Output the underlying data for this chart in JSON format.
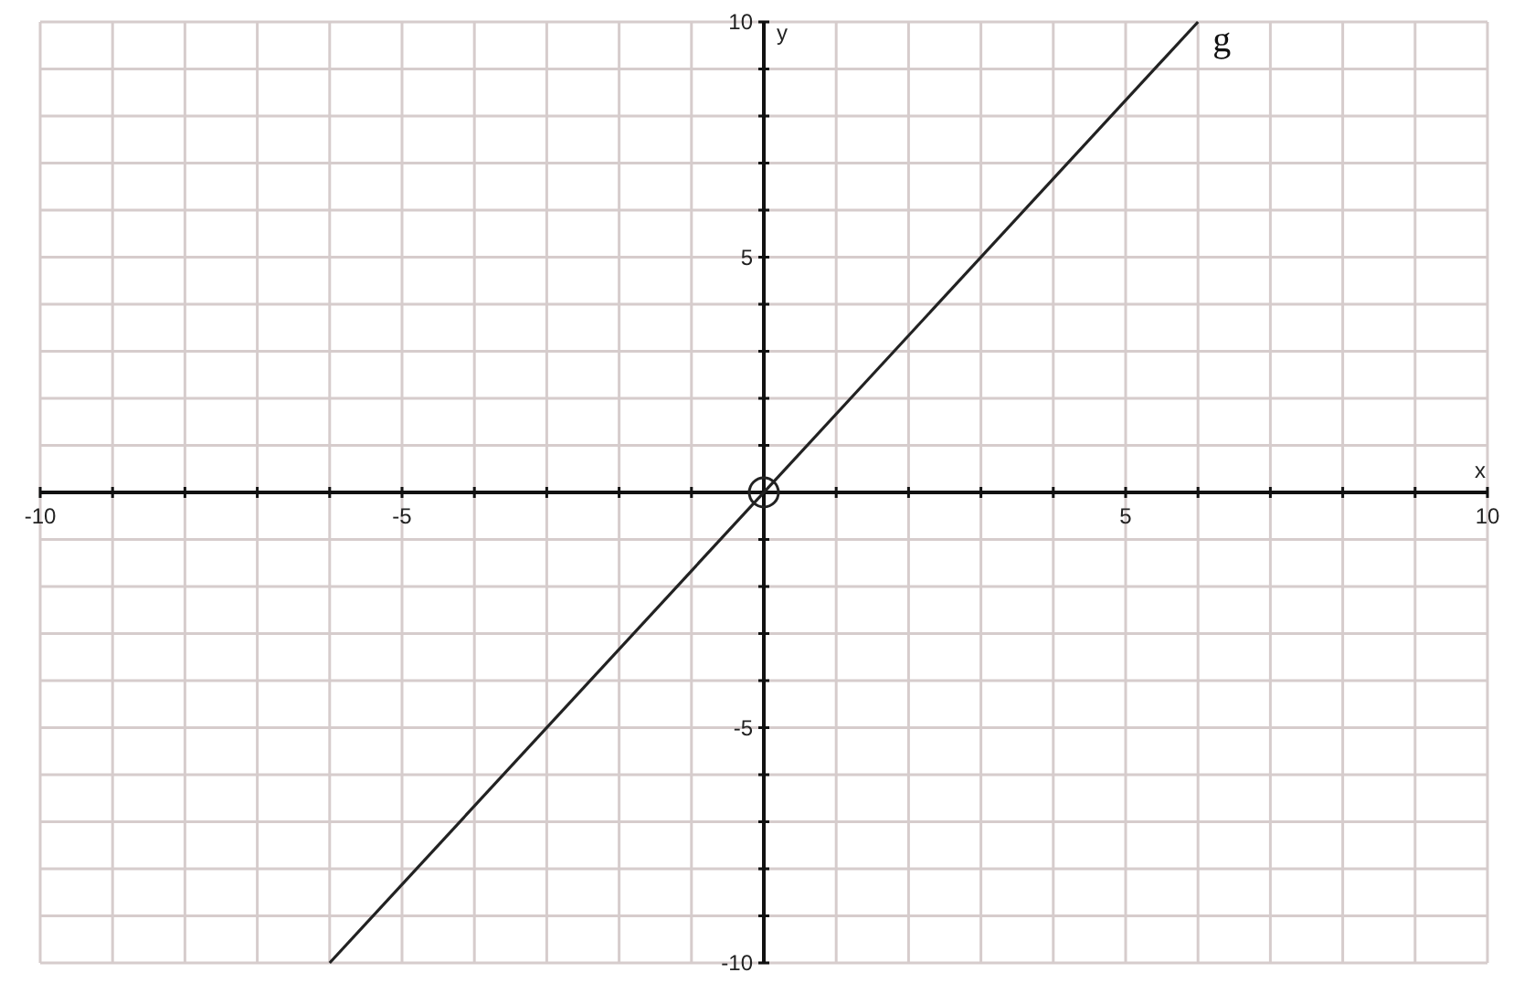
{
  "chart_data": {
    "type": "line",
    "xlabel": "x",
    "ylabel": "y",
    "xlim": [
      -10,
      10
    ],
    "ylim": [
      -10,
      10
    ],
    "xticks": [
      -10,
      {
        "value": -9,
        "label": null
      },
      {
        "value": -8,
        "label": null
      },
      {
        "value": -7,
        "label": null
      },
      {
        "value": -6,
        "label": null
      },
      -5,
      {
        "value": -4,
        "label": null
      },
      {
        "value": -3,
        "label": null
      },
      {
        "value": -2,
        "label": null
      },
      {
        "value": -1,
        "label": null
      },
      {
        "value": 0,
        "label": null
      },
      {
        "value": 1,
        "label": null
      },
      {
        "value": 2,
        "label": null
      },
      {
        "value": 3,
        "label": null
      },
      {
        "value": 4,
        "label": null
      },
      5,
      {
        "value": 6,
        "label": null
      },
      {
        "value": 7,
        "label": null
      },
      {
        "value": 8,
        "label": null
      },
      {
        "value": 9,
        "label": null
      },
      10
    ],
    "yticks": [
      -10,
      {
        "value": -9,
        "label": null
      },
      {
        "value": -8,
        "label": null
      },
      {
        "value": -7,
        "label": null
      },
      {
        "value": -6,
        "label": null
      },
      -5,
      {
        "value": -4,
        "label": null
      },
      {
        "value": -3,
        "label": null
      },
      {
        "value": -2,
        "label": null
      },
      {
        "value": -1,
        "label": null
      },
      {
        "value": 0,
        "label": null
      },
      {
        "value": 1,
        "label": null
      },
      {
        "value": 2,
        "label": null
      },
      {
        "value": 3,
        "label": null
      },
      {
        "value": 4,
        "label": null
      },
      5,
      {
        "value": 6,
        "label": null
      },
      {
        "value": 7,
        "label": null
      },
      {
        "value": 8,
        "label": null
      },
      {
        "value": 9,
        "label": null
      },
      10
    ],
    "grid": true,
    "series": [
      {
        "name": "g",
        "color": "#222222",
        "x": [
          -6,
          6
        ],
        "values": [
          -10,
          10
        ]
      },
      {
        "type": "scatter",
        "color": "#222222",
        "marker": "circle",
        "x": [
          0
        ],
        "values": [
          0
        ]
      }
    ]
  }
}
